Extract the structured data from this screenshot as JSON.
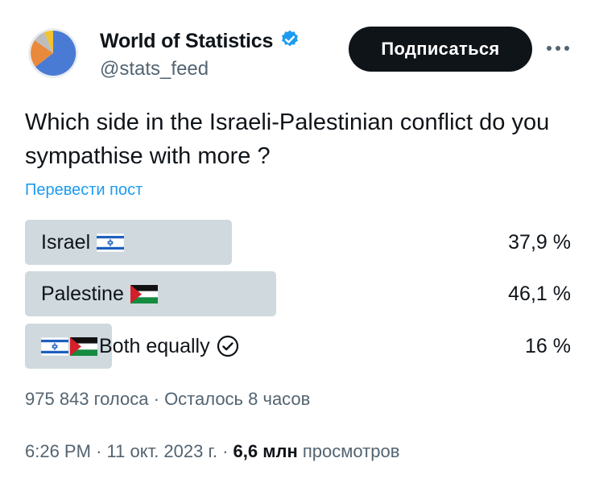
{
  "account": {
    "display_name": "World of Statistics",
    "handle": "@stats_feed",
    "verified_icon": "verified-badge-icon",
    "avatar_colors": [
      "#4a7bd4",
      "#e8893b",
      "#f2c230",
      "#bdbdbd"
    ],
    "verified_color": "#1d9bf0"
  },
  "actions": {
    "subscribe_label": "Подписаться",
    "more_icon": "more-options-icon"
  },
  "tweet": {
    "text": "Which side in the Israeli-Palestinian conflict do you sympathise with more ?",
    "translate_label": "Перевести пост"
  },
  "poll": {
    "options": [
      {
        "label": "Israel",
        "flags": [
          "israel-flag-icon"
        ],
        "percent_text": "37,9 %",
        "fraction": 0.379
      },
      {
        "label": "Palestine",
        "flags": [
          "palestine-flag-icon"
        ],
        "percent_text": "46,1 %",
        "fraction": 0.461
      },
      {
        "label": "Both equally",
        "flags": [
          "israel-flag-icon",
          "palestine-flag-icon"
        ],
        "percent_text": "16 %",
        "fraction": 0.16,
        "selected": true
      }
    ],
    "votes": "975 843 голоса",
    "separator": "·",
    "time_left": "Осталось 8 часов",
    "bar_color": "#cfd9de"
  },
  "footer": {
    "time": "6:26 PM",
    "separator": "·",
    "date": "11 окт. 2023 г.",
    "views_count": "6,6 млн",
    "views_label": "просмотров"
  }
}
